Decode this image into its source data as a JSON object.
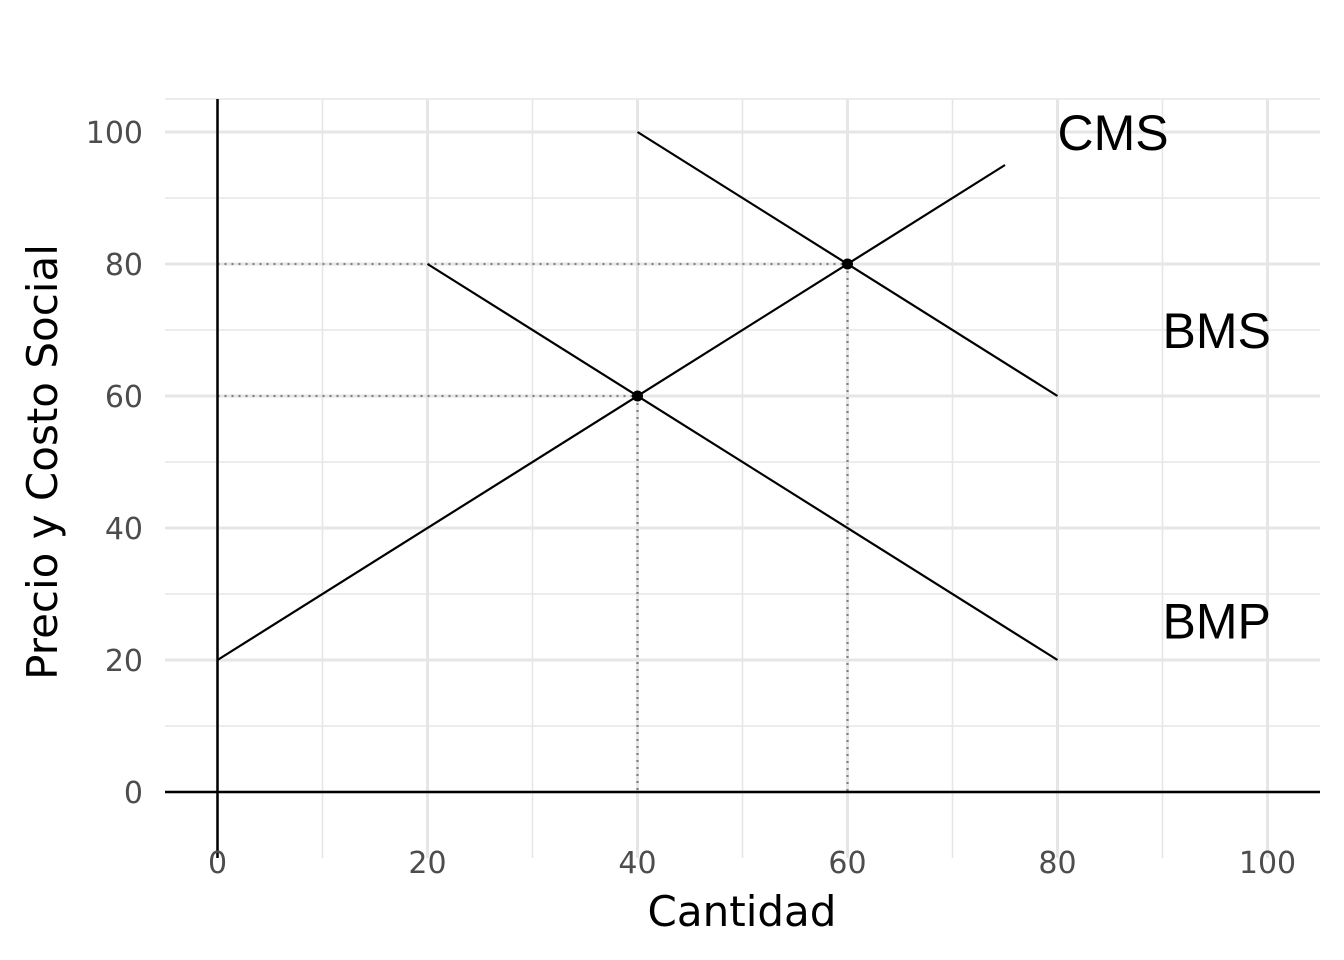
{
  "chart_data": {
    "type": "line",
    "xlabel": "Cantidad",
    "ylabel": "Precio y Costo Social",
    "xlim": [
      -5,
      105
    ],
    "ylim": [
      -5,
      105
    ],
    "x_ticks": [
      0,
      20,
      40,
      60,
      80,
      100
    ],
    "y_ticks": [
      0,
      20,
      40,
      60,
      80,
      100
    ],
    "grid": true,
    "series": [
      {
        "name": "CMS",
        "x": [
          40,
          80
        ],
        "y": [
          100,
          60
        ]
      },
      {
        "name": "BMS",
        "x": [
          0,
          75
        ],
        "y": [
          20,
          95
        ]
      },
      {
        "name": "BMP",
        "x": [
          20,
          80
        ],
        "y": [
          80,
          20
        ]
      }
    ],
    "labels": [
      {
        "text": "CMS",
        "x": 80,
        "y": 100
      },
      {
        "text": "BMS",
        "x": 90,
        "y": 70
      },
      {
        "text": "BMP",
        "x": 90,
        "y": 26
      }
    ],
    "points": [
      {
        "x": 40,
        "y": 60
      },
      {
        "x": 60,
        "y": 80
      }
    ],
    "guides": [
      {
        "x": 40,
        "y": 60
      },
      {
        "x": 60,
        "y": 80
      }
    ],
    "colors": {
      "line": "#000000",
      "grid": "#e6e6e6",
      "guide": "#808080",
      "tick_text": "#4d4d4d"
    }
  }
}
